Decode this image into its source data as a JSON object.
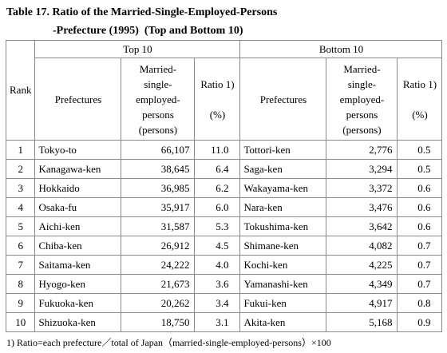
{
  "title": [
    "Table 17. Ratio of the Married-Single-Employed-Persons",
    "-Prefecture (1995)  (Top and Bottom 10)"
  ],
  "table": {
    "groups": [
      "Top 10",
      "Bottom 10"
    ],
    "columns": [
      [
        "Rank"
      ],
      [
        "Prefectures"
      ],
      [
        "Married-",
        "single-",
        "employed-",
        "persons",
        "(persons)"
      ],
      [
        "Ratio 1)",
        "",
        "(%)"
      ],
      [
        "Prefectures"
      ],
      [
        "Married-",
        "single-",
        "employed-",
        "persons",
        "(persons)"
      ],
      [
        "Ratio 1)",
        "",
        "(%)"
      ]
    ],
    "rows": [
      [
        "1",
        "Tokyo-to",
        "66,107",
        "11.0",
        "Tottori-ken",
        "2,776",
        "0.5"
      ],
      [
        "2",
        "Kanagawa-ken",
        "38,645",
        "6.4",
        "Saga-ken",
        "3,294",
        "0.5"
      ],
      [
        "3",
        "Hokkaido",
        "36,985",
        "6.2",
        "Wakayama-ken",
        "3,372",
        "0.6"
      ],
      [
        "4",
        "Osaka-fu",
        "35,917",
        "6.0",
        "Nara-ken",
        "3,476",
        "0.6"
      ],
      [
        "5",
        "Aichi-ken",
        "31,587",
        "5.3",
        "Tokushima-ken",
        "3,642",
        "0.6"
      ],
      [
        "6",
        "Chiba-ken",
        "26,912",
        "4.5",
        "Shimane-ken",
        "4,082",
        "0.7"
      ],
      [
        "7",
        "Saitama-ken",
        "24,222",
        "4.0",
        "Kochi-ken",
        "4,225",
        "0.7"
      ],
      [
        "8",
        "Hyogo-ken",
        "21,673",
        "3.6",
        "Yamanashi-ken",
        "4,349",
        "0.7"
      ],
      [
        "9",
        "Fukuoka-ken",
        "20,262",
        "3.4",
        "Fukui-ken",
        "4,917",
        "0.8"
      ],
      [
        "10",
        "Shizuoka-ken",
        "18,750",
        "3.1",
        "Akita-ken",
        "5,168",
        "0.9"
      ]
    ]
  },
  "footnote": "1) Ratio=each prefecture／total of Japan（married-single-employed-persons）×100"
}
